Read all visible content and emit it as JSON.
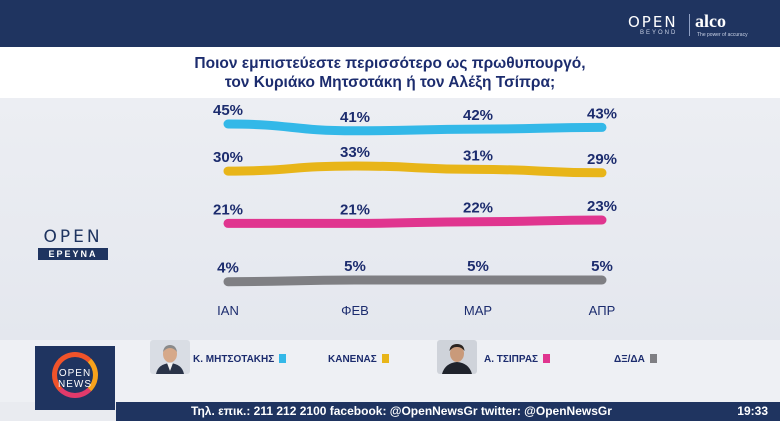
{
  "branding": {
    "open_label": "OPEN",
    "open_sub": "BEYOND",
    "alco_label": "alco",
    "alco_sub": "The power of accuracy",
    "channel_logo_top": "OPEN",
    "channel_logo_bottom": "ΕΡΕΥΝΑ",
    "news_logo_line1": "OPEN",
    "news_logo_line2": "NEWS"
  },
  "chart_data": {
    "type": "line",
    "title": "Ποιον εμπιστεύεστε περισσότερο ως πρωθυπουργό, τον Κυριάκο Μητσοτάκη ή τον Αλέξη Τσίπρα;",
    "title_lines": [
      "Ποιον εμπιστεύεστε περισσότερο ως πρωθυπουργό,",
      "τον Κυριάκο Μητσοτάκη ή τον Αλέξη Τσίπρα;"
    ],
    "categories": [
      "ΙΑΝ",
      "ΦΕΒ",
      "ΜΑΡ",
      "ΑΠΡ"
    ],
    "value_suffix": "%",
    "series": [
      {
        "name": "Κ. ΜΗΤΣΟΤΑΚΗΣ",
        "color": "#33b8e8",
        "values": [
          45,
          41,
          42,
          43
        ]
      },
      {
        "name": "ΚΑΝΕΝΑΣ",
        "color": "#e8b519",
        "values": [
          30,
          33,
          31,
          29
        ]
      },
      {
        "name": "Α. ΤΣΙΠΡΑΣ",
        "color": "#e0358f",
        "values": [
          21,
          21,
          22,
          23
        ]
      },
      {
        "name": "ΔΞ/ΔΑ",
        "color": "#7f7f83",
        "values": [
          4,
          5,
          5,
          5
        ]
      }
    ],
    "layout_note": "each series drawn in its own band, not on a shared numeric axis",
    "grid": false,
    "legend_position": "bottom"
  },
  "legend": {
    "items": [
      {
        "label": "Κ. ΜΗΤΣΟΤΑΚΗΣ",
        "color": "#33b8e8",
        "portrait": "mitsotakis-portrait"
      },
      {
        "label": "ΚΑΝΕΝΑΣ",
        "color": "#e8b519"
      },
      {
        "label": "Α. ΤΣΙΠΡΑΣ",
        "color": "#e0358f",
        "portrait": "tsipras-portrait"
      },
      {
        "label": "ΔΞ/ΔΑ",
        "color": "#7f7f83"
      }
    ]
  },
  "ticker": {
    "text": "Τηλ. επικ.: 211 212 2100 facebook: @OpenNewsGr twitter: @OpenNewsGr",
    "time": "19:33"
  },
  "colors": {
    "navy": "#1f3460",
    "title_text": "#1c2c6e"
  }
}
